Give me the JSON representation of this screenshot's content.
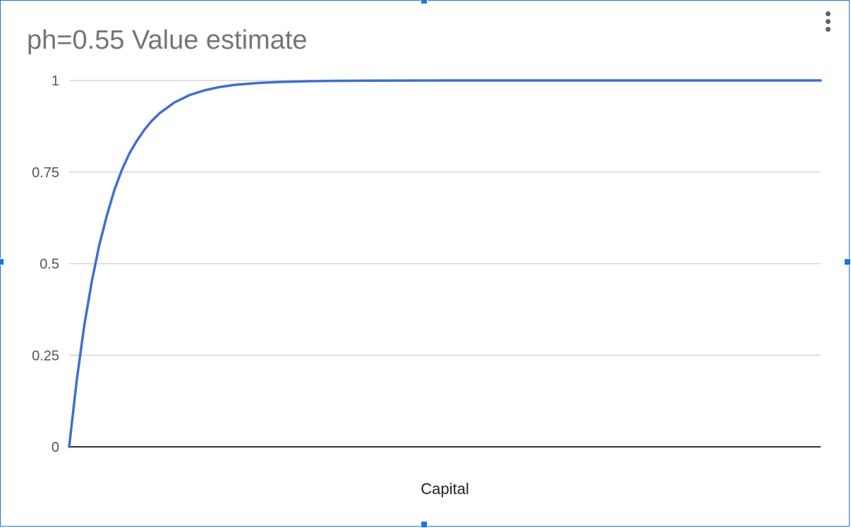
{
  "chart_data": {
    "type": "line",
    "title": "ph=0.55 Value estimate",
    "xlabel": "Capital",
    "ylabel": "",
    "xlim": [
      0,
      100
    ],
    "ylim": [
      0,
      1
    ],
    "yticks": [
      "0",
      "0.25",
      "0.5",
      "0.75",
      "1"
    ],
    "grid": true,
    "legend": "none",
    "series": [
      {
        "color": "#3f6fcf",
        "x": [
          0,
          1,
          2,
          3,
          4,
          5,
          6,
          7,
          8,
          9,
          10,
          11,
          12,
          13,
          14,
          16,
          18,
          20,
          22,
          25,
          28,
          32,
          36,
          40,
          50,
          60,
          70,
          80,
          90,
          100
        ],
        "y": [
          0,
          0.18,
          0.33,
          0.45,
          0.55,
          0.63,
          0.7,
          0.755,
          0.8,
          0.835,
          0.865,
          0.89,
          0.91,
          0.925,
          0.94,
          0.96,
          0.973,
          0.982,
          0.988,
          0.993,
          0.996,
          0.998,
          0.999,
          0.9995,
          1,
          1,
          1,
          1,
          1,
          1
        ]
      }
    ]
  },
  "ui": {
    "menu_icon": "more-vert-icon",
    "frame_color": "#1a73e8"
  }
}
